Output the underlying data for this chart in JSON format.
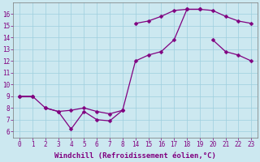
{
  "background_color": "#cce8f0",
  "line_color": "#800080",
  "marker": "D",
  "marker_size": 2.5,
  "line_width": 0.9,
  "xlabel": "Windchill (Refroidissement éolien,°C)",
  "xlabel_fontsize": 6.5,
  "ylim": [
    5.5,
    17.0
  ],
  "yticks": [
    6,
    7,
    8,
    9,
    10,
    11,
    12,
    13,
    14,
    15,
    16
  ],
  "tick_fontsize": 5.5,
  "grid_color": "#9ecfde",
  "xtick_labels": [
    "0",
    "1",
    "2",
    "3",
    "4",
    "5",
    "6",
    "7",
    "8",
    "14",
    "15",
    "16",
    "17",
    "18",
    "19",
    "20",
    "21",
    "22",
    "23"
  ],
  "xtick_positions": [
    0,
    1,
    2,
    3,
    4,
    5,
    6,
    7,
    8,
    14,
    15,
    16,
    17,
    18,
    19,
    20,
    21,
    22,
    23
  ],
  "x_real": [
    0,
    1,
    2,
    3,
    4,
    5,
    6,
    7,
    8,
    14,
    15,
    16,
    17,
    18,
    19,
    20,
    21,
    22,
    23
  ],
  "x_mapped": [
    0,
    1,
    2,
    3,
    4,
    5,
    6,
    7,
    8,
    9,
    10,
    11,
    12,
    13,
    14,
    15,
    16,
    17,
    18
  ],
  "series1_y": [
    9,
    9,
    null,
    null,
    null,
    null,
    null,
    null,
    null,
    15.2,
    15.4,
    15.8,
    16.3,
    16.4,
    16.4,
    null,
    null,
    null,
    null
  ],
  "series2_y": [
    9,
    9,
    8,
    7.7,
    7.8,
    8.0,
    7.7,
    7.5,
    7.8,
    12.0,
    12.5,
    12.8,
    13.8,
    16.4,
    16.4,
    16.3,
    15.8,
    15.4,
    15.2
  ],
  "series3_y": [
    null,
    null,
    8,
    7.7,
    6.2,
    7.7,
    7.0,
    6.9,
    7.8,
    null,
    null,
    null,
    null,
    null,
    null,
    13.8,
    12.8,
    12.5,
    12.0
  ]
}
